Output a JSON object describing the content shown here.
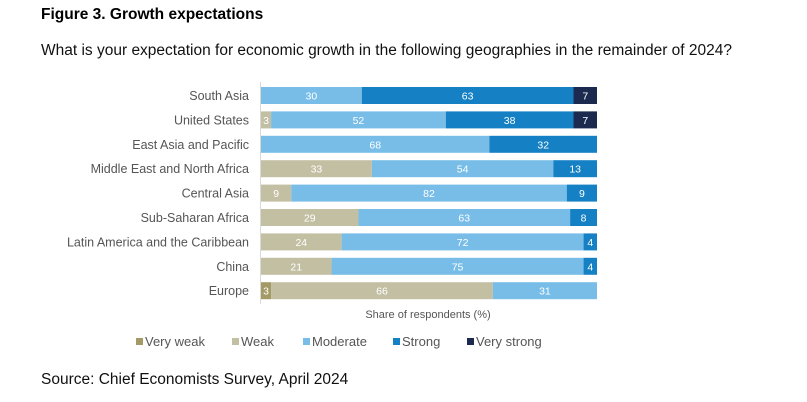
{
  "figure_title": "Figure 3. Growth expectations",
  "question": "What is your expectation for economic growth in the following geographies in the remainder of 2024?",
  "source": "Source: Chief Economists Survey, April 2024",
  "chart_data": {
    "type": "bar",
    "orientation": "horizontal",
    "stacked": true,
    "title": "What is your expectation for economic growth in the following geographies in the remainder of 2024?",
    "xlabel": "Share of respondents (%)",
    "ylabel": "",
    "xlim": [
      0,
      100
    ],
    "grid": false,
    "legend_position": "bottom",
    "categories": [
      "South Asia",
      "United States",
      "East Asia and Pacific",
      "Middle East and North Africa",
      "Central Asia",
      "Sub-Saharan Africa",
      "Latin America and the Caribbean",
      "China",
      "Europe"
    ],
    "series": [
      {
        "name": "Very weak",
        "color": "#a39a66",
        "values": [
          0,
          0,
          0,
          0,
          0,
          0,
          0,
          0,
          3
        ]
      },
      {
        "name": "Weak",
        "color": "#c3bfa3",
        "values": [
          0,
          3,
          0,
          33,
          9,
          29,
          24,
          21,
          66
        ]
      },
      {
        "name": "Moderate",
        "color": "#77bde8",
        "values": [
          30,
          52,
          68,
          54,
          82,
          63,
          72,
          75,
          31
        ]
      },
      {
        "name": "Strong",
        "color": "#1580c4",
        "values": [
          63,
          38,
          32,
          13,
          9,
          8,
          4,
          4,
          0
        ]
      },
      {
        "name": "Very strong",
        "color": "#1b2a4e",
        "values": [
          7,
          7,
          0,
          0,
          0,
          0,
          0,
          0,
          0
        ]
      }
    ]
  }
}
